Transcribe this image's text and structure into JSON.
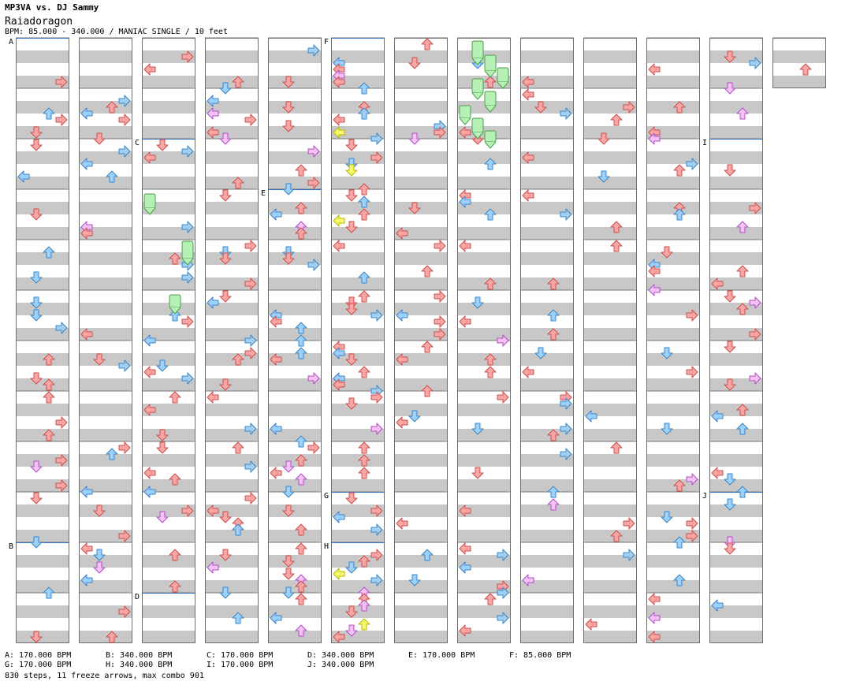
{
  "header": {
    "title": "MP3VA vs. DJ Sammy",
    "song": "Raiadoragon",
    "info": "BPM: 85.000 - 340.000 / MANIAC SINGLE / 10 feet"
  },
  "colors": {
    "red": "#f6a6a6",
    "red_stroke": "#d24c4c",
    "blue": "#9ecff7",
    "blue_stroke": "#3a86c8",
    "pink": "#f4c2f4",
    "pink_stroke": "#b050c0",
    "yellow": "#f8f870",
    "yellow_stroke": "#b8b800",
    "green": "#b6f0b6",
    "green_stroke": "#48a048",
    "stripe": "#c8c8c8",
    "marker_line": "#3a70c8"
  },
  "chart_data": {
    "type": "table",
    "columns": 13,
    "measures_per_column": 12,
    "last_column_measures": 1,
    "markers": [
      {
        "label": "A",
        "column": 1,
        "measure": 1
      },
      {
        "label": "B",
        "column": 1,
        "measure": 11
      },
      {
        "label": "C",
        "column": 3,
        "measure": 3
      },
      {
        "label": "D",
        "column": 3,
        "measure": 12
      },
      {
        "label": "E",
        "column": 5,
        "measure": 4
      },
      {
        "label": "F",
        "column": 6,
        "measure": 1
      },
      {
        "label": "G",
        "column": 6,
        "measure": 10
      },
      {
        "label": "H",
        "column": 6,
        "measure": 11
      },
      {
        "label": "I",
        "column": 12,
        "measure": 3
      },
      {
        "label": "J",
        "column": 12,
        "measure": 10
      }
    ]
  },
  "legend": [
    "A: 170.000 BPM",
    "B: 340.000 BPM",
    "C: 170.000 BPM",
    "D: 340.000 BPM",
    "E: 170.000 BPM",
    "F: 85.000 BPM",
    "G: 170.000 BPM",
    "H: 340.000 BPM",
    "I: 170.000 BPM",
    "J: 340.000 BPM"
  ],
  "footer": "830 steps, 11 freeze arrows, max combo 901"
}
